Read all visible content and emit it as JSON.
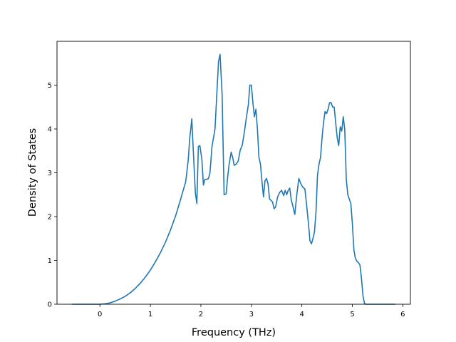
{
  "chart_data": {
    "type": "line",
    "title": "",
    "xlabel": "Frequency (THz)",
    "ylabel": "Density of States",
    "xlim": [
      -0.85,
      6.15
    ],
    "ylim": [
      0,
      6.0
    ],
    "xticks": [
      0,
      1,
      2,
      3,
      4,
      5,
      6
    ],
    "yticks": [
      0,
      1,
      2,
      3,
      4,
      5
    ],
    "grid": false,
    "line_color": "#1f77b4",
    "series": [
      {
        "x": [
          -0.55,
          0.0,
          0.1,
          0.2,
          0.3,
          0.4,
          0.5,
          0.6,
          0.7,
          0.8,
          0.9,
          1.0,
          1.1,
          1.2,
          1.3,
          1.4,
          1.5,
          1.6,
          1.7,
          1.75,
          1.78,
          1.8,
          1.82,
          1.85,
          1.89,
          1.92,
          1.95,
          1.98,
          2.02,
          2.05,
          2.08,
          2.12,
          2.15,
          2.18,
          2.22,
          2.28,
          2.32,
          2.35,
          2.38,
          2.42,
          2.46,
          2.5,
          2.53,
          2.56,
          2.6,
          2.63,
          2.66,
          2.7,
          2.74,
          2.78,
          2.82,
          2.86,
          2.9,
          2.94,
          2.97,
          3.0,
          3.03,
          3.06,
          3.09,
          3.12,
          3.15,
          3.18,
          3.21,
          3.24,
          3.27,
          3.3,
          3.33,
          3.36,
          3.39,
          3.42,
          3.45,
          3.48,
          3.52,
          3.56,
          3.6,
          3.64,
          3.67,
          3.7,
          3.73,
          3.76,
          3.79,
          3.82,
          3.86,
          3.9,
          3.94,
          3.98,
          4.02,
          4.06,
          4.1,
          4.13,
          4.16,
          4.19,
          4.22,
          4.25,
          4.28,
          4.31,
          4.34,
          4.37,
          4.4,
          4.43,
          4.46,
          4.49,
          4.52,
          4.55,
          4.58,
          4.61,
          4.64,
          4.67,
          4.7,
          4.73,
          4.76,
          4.79,
          4.82,
          4.85,
          4.88,
          4.91,
          4.94,
          4.97,
          5.0,
          5.03,
          5.06,
          5.09,
          5.12,
          5.15,
          5.18,
          5.21,
          5.24,
          5.27,
          5.3,
          5.33,
          5.4,
          5.85
        ],
        "y": [
          0,
          0,
          0.01,
          0.03,
          0.07,
          0.12,
          0.18,
          0.26,
          0.36,
          0.48,
          0.62,
          0.78,
          0.97,
          1.18,
          1.42,
          1.7,
          2.02,
          2.4,
          2.8,
          3.3,
          3.8,
          4.0,
          4.23,
          3.5,
          2.55,
          2.3,
          3.6,
          3.62,
          3.3,
          2.72,
          2.85,
          2.85,
          2.87,
          3.0,
          3.6,
          4.0,
          4.9,
          5.55,
          5.7,
          4.8,
          2.5,
          2.52,
          2.9,
          3.2,
          3.47,
          3.35,
          3.17,
          3.2,
          3.27,
          3.52,
          3.63,
          3.92,
          4.25,
          4.55,
          5.0,
          5.0,
          4.6,
          4.28,
          4.45,
          4.0,
          3.35,
          3.2,
          2.8,
          2.45,
          2.82,
          2.87,
          2.75,
          2.4,
          2.37,
          2.33,
          2.18,
          2.22,
          2.45,
          2.55,
          2.6,
          2.48,
          2.6,
          2.5,
          2.6,
          2.65,
          2.38,
          2.25,
          2.05,
          2.5,
          2.87,
          2.75,
          2.67,
          2.63,
          2.2,
          1.85,
          1.45,
          1.38,
          1.5,
          1.65,
          2.1,
          2.95,
          3.2,
          3.35,
          3.8,
          4.15,
          4.4,
          4.35,
          4.45,
          4.6,
          4.6,
          4.5,
          4.5,
          4.15,
          3.8,
          3.62,
          4.05,
          3.95,
          4.28,
          3.98,
          2.85,
          2.5,
          2.4,
          2.3,
          1.85,
          1.25,
          1.05,
          0.98,
          0.95,
          0.9,
          0.6,
          0.2,
          0.02,
          0,
          0,
          0,
          0,
          0
        ]
      }
    ]
  }
}
